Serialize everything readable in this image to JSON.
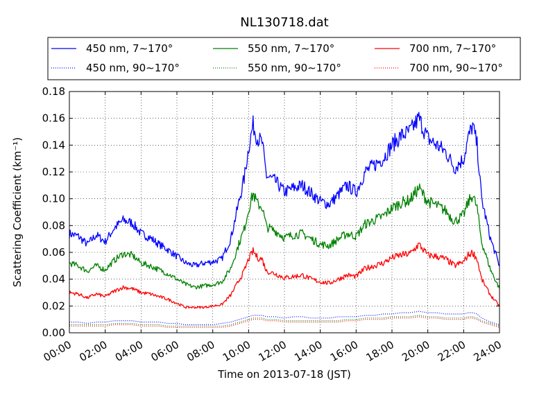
{
  "chart_data": {
    "type": "line",
    "title": "NL130718.dat",
    "xlabel": "Time on 2013-07-18 (JST)",
    "ylabel": "Scattering Coefficient (km⁻¹)",
    "xlim": [
      "00:00",
      "24:00"
    ],
    "ylim": [
      0,
      0.18
    ],
    "x_ticks": [
      "00:00",
      "02:00",
      "04:00",
      "06:00",
      "08:00",
      "10:00",
      "12:00",
      "14:00",
      "16:00",
      "18:00",
      "20:00",
      "22:00",
      "24:00"
    ],
    "y_ticks": [
      "0.00",
      "0.02",
      "0.04",
      "0.06",
      "0.08",
      "0.10",
      "0.12",
      "0.14",
      "0.16",
      "0.18"
    ],
    "grid": true,
    "legend_position": "top",
    "x_hours": [
      0,
      0.5,
      1,
      1.5,
      2,
      2.5,
      3,
      3.5,
      4,
      4.5,
      5,
      5.5,
      6,
      6.5,
      7,
      7.5,
      8,
      8.5,
      9,
      9.25,
      9.5,
      9.75,
      10,
      10.25,
      10.5,
      10.75,
      11,
      11.5,
      12,
      12.5,
      13,
      13.5,
      14,
      14.5,
      15,
      15.5,
      16,
      16.5,
      17,
      17.5,
      18,
      18.5,
      19,
      19.5,
      20,
      20.5,
      21,
      21.5,
      22,
      22.25,
      22.5,
      22.75,
      23,
      23.5,
      24
    ],
    "series": [
      {
        "name": "450 nm, 7∼170°",
        "color": "#0000ff",
        "style": "solid",
        "values": [
          0.074,
          0.072,
          0.066,
          0.073,
          0.068,
          0.078,
          0.084,
          0.082,
          0.074,
          0.071,
          0.066,
          0.062,
          0.057,
          0.052,
          0.05,
          0.052,
          0.053,
          0.055,
          0.07,
          0.085,
          0.1,
          0.115,
          0.138,
          0.155,
          0.145,
          0.142,
          0.117,
          0.113,
          0.105,
          0.108,
          0.11,
          0.104,
          0.098,
          0.096,
          0.103,
          0.11,
          0.105,
          0.12,
          0.125,
          0.13,
          0.14,
          0.147,
          0.15,
          0.16,
          0.145,
          0.14,
          0.135,
          0.123,
          0.13,
          0.145,
          0.155,
          0.14,
          0.1,
          0.07,
          0.05
        ]
      },
      {
        "name": "450 nm, 90∼170°",
        "color": "#0000ff",
        "style": "dotted",
        "values": [
          0.008,
          0.008,
          0.007,
          0.008,
          0.008,
          0.009,
          0.009,
          0.009,
          0.008,
          0.008,
          0.008,
          0.007,
          0.007,
          0.006,
          0.006,
          0.006,
          0.006,
          0.007,
          0.008,
          0.009,
          0.01,
          0.011,
          0.012,
          0.013,
          0.013,
          0.013,
          0.012,
          0.012,
          0.011,
          0.012,
          0.012,
          0.011,
          0.011,
          0.011,
          0.012,
          0.012,
          0.012,
          0.013,
          0.013,
          0.014,
          0.014,
          0.015,
          0.015,
          0.016,
          0.015,
          0.015,
          0.014,
          0.014,
          0.014,
          0.015,
          0.015,
          0.014,
          0.011,
          0.008,
          0.006
        ]
      },
      {
        "name": "550 nm, 7∼170°",
        "color": "#008000",
        "style": "solid",
        "values": [
          0.052,
          0.05,
          0.046,
          0.05,
          0.047,
          0.054,
          0.059,
          0.058,
          0.052,
          0.05,
          0.047,
          0.044,
          0.04,
          0.036,
          0.034,
          0.035,
          0.036,
          0.038,
          0.048,
          0.058,
          0.068,
          0.077,
          0.092,
          0.104,
          0.096,
          0.094,
          0.079,
          0.076,
          0.071,
          0.073,
          0.074,
          0.07,
          0.066,
          0.065,
          0.07,
          0.074,
          0.072,
          0.081,
          0.084,
          0.087,
          0.093,
          0.097,
          0.099,
          0.108,
          0.098,
          0.095,
          0.091,
          0.083,
          0.088,
          0.097,
          0.103,
          0.093,
          0.068,
          0.047,
          0.033
        ]
      },
      {
        "name": "550 nm, 90∼170°",
        "color": "#008000",
        "style": "dotted",
        "values": [
          0.006,
          0.006,
          0.006,
          0.006,
          0.006,
          0.007,
          0.007,
          0.007,
          0.006,
          0.006,
          0.006,
          0.005,
          0.005,
          0.005,
          0.005,
          0.005,
          0.005,
          0.005,
          0.006,
          0.007,
          0.008,
          0.009,
          0.01,
          0.011,
          0.011,
          0.011,
          0.01,
          0.01,
          0.009,
          0.009,
          0.009,
          0.009,
          0.009,
          0.009,
          0.009,
          0.01,
          0.01,
          0.011,
          0.011,
          0.011,
          0.012,
          0.012,
          0.012,
          0.013,
          0.012,
          0.012,
          0.011,
          0.011,
          0.011,
          0.012,
          0.012,
          0.011,
          0.009,
          0.007,
          0.005
        ]
      },
      {
        "name": "700 nm, 7∼170°",
        "color": "#ff0000",
        "style": "solid",
        "values": [
          0.03,
          0.029,
          0.026,
          0.029,
          0.027,
          0.031,
          0.034,
          0.033,
          0.03,
          0.029,
          0.027,
          0.025,
          0.022,
          0.019,
          0.019,
          0.019,
          0.02,
          0.021,
          0.028,
          0.034,
          0.04,
          0.046,
          0.055,
          0.061,
          0.056,
          0.055,
          0.046,
          0.044,
          0.041,
          0.042,
          0.043,
          0.04,
          0.038,
          0.037,
          0.04,
          0.043,
          0.042,
          0.048,
          0.05,
          0.052,
          0.056,
          0.058,
          0.059,
          0.066,
          0.058,
          0.057,
          0.055,
          0.05,
          0.053,
          0.058,
          0.06,
          0.055,
          0.04,
          0.028,
          0.02
        ]
      },
      {
        "name": "700 nm, 90∼170°",
        "color": "#ff0000",
        "style": "dotted",
        "values": [
          0.005,
          0.005,
          0.005,
          0.005,
          0.005,
          0.006,
          0.006,
          0.006,
          0.005,
          0.005,
          0.005,
          0.004,
          0.004,
          0.004,
          0.004,
          0.004,
          0.004,
          0.004,
          0.005,
          0.006,
          0.007,
          0.008,
          0.009,
          0.01,
          0.01,
          0.01,
          0.009,
          0.009,
          0.008,
          0.008,
          0.008,
          0.008,
          0.008,
          0.008,
          0.008,
          0.009,
          0.009,
          0.01,
          0.01,
          0.01,
          0.011,
          0.011,
          0.011,
          0.012,
          0.011,
          0.011,
          0.01,
          0.01,
          0.01,
          0.011,
          0.011,
          0.01,
          0.008,
          0.006,
          0.004
        ]
      }
    ]
  }
}
